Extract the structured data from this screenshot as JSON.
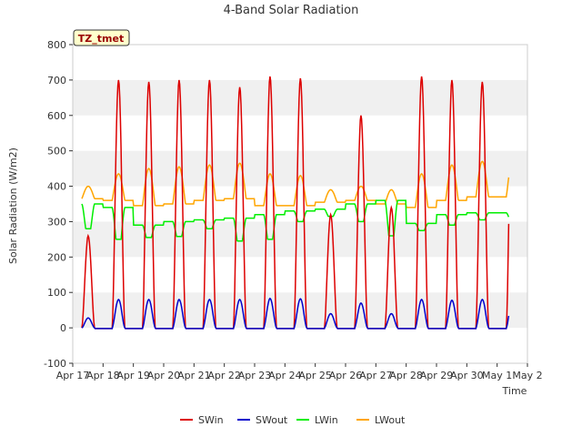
{
  "chart_data": {
    "type": "line",
    "title": "4-Band Solar Radiation",
    "xlabel": "Time",
    "ylabel": "Solar Radiation (W/m2)",
    "ylim": [
      -100,
      800
    ],
    "xlim_days": [
      17,
      32
    ],
    "yticks": [
      -100,
      0,
      100,
      200,
      300,
      400,
      500,
      600,
      700,
      800
    ],
    "xticks": [
      {
        "day": 17,
        "label": "Apr 17"
      },
      {
        "day": 18,
        "label": "Apr 18"
      },
      {
        "day": 19,
        "label": "Apr 19"
      },
      {
        "day": 20,
        "label": "Apr 20"
      },
      {
        "day": 21,
        "label": "Apr 21"
      },
      {
        "day": 22,
        "label": "Apr 22"
      },
      {
        "day": 23,
        "label": "Apr 23"
      },
      {
        "day": 24,
        "label": "Apr 24"
      },
      {
        "day": 25,
        "label": "Apr 25"
      },
      {
        "day": 26,
        "label": "Apr 26"
      },
      {
        "day": 27,
        "label": "Apr 27"
      },
      {
        "day": 28,
        "label": "Apr 28"
      },
      {
        "day": 29,
        "label": "Apr 29"
      },
      {
        "day": 30,
        "label": "Apr 30"
      },
      {
        "day": 31,
        "label": "May 1"
      },
      {
        "day": 32,
        "label": "May 2"
      }
    ],
    "grid": "horizontal bands",
    "annotation": "TZ_tmet",
    "data_range_days": [
      17.3,
      31.4
    ],
    "legend_position": "bottom-center",
    "series": [
      {
        "name": "SWin",
        "color": "#dd0000",
        "daily": [
          {
            "day": 17,
            "peak": 260
          },
          {
            "day": 18,
            "peak": 700
          },
          {
            "day": 19,
            "peak": 695
          },
          {
            "day": 20,
            "peak": 700
          },
          {
            "day": 21,
            "peak": 700
          },
          {
            "day": 22,
            "peak": 680
          },
          {
            "day": 23,
            "peak": 710
          },
          {
            "day": 24,
            "peak": 705
          },
          {
            "day": 25,
            "peak": 320
          },
          {
            "day": 26,
            "peak": 600
          },
          {
            "day": 27,
            "peak": 340
          },
          {
            "day": 28,
            "peak": 710
          },
          {
            "day": 29,
            "peak": 700
          },
          {
            "day": 30,
            "peak": 695
          }
        ]
      },
      {
        "name": "SWout",
        "color": "#0000cc",
        "daily": [
          {
            "day": 17,
            "peak": 28
          },
          {
            "day": 18,
            "peak": 80
          },
          {
            "day": 19,
            "peak": 80
          },
          {
            "day": 20,
            "peak": 80
          },
          {
            "day": 21,
            "peak": 80
          },
          {
            "day": 22,
            "peak": 80
          },
          {
            "day": 23,
            "peak": 83
          },
          {
            "day": 24,
            "peak": 82
          },
          {
            "day": 25,
            "peak": 40
          },
          {
            "day": 26,
            "peak": 70
          },
          {
            "day": 27,
            "peak": 40
          },
          {
            "day": 28,
            "peak": 80
          },
          {
            "day": 29,
            "peak": 78
          },
          {
            "day": 30,
            "peak": 80
          }
        ]
      },
      {
        "name": "LWin",
        "color": "#00ee00",
        "daily": [
          {
            "day": 17,
            "night": 350,
            "day_val": 280
          },
          {
            "day": 18,
            "night": 340,
            "day_val": 250
          },
          {
            "day": 19,
            "night": 290,
            "day_val": 255
          },
          {
            "day": 20,
            "night": 300,
            "day_val": 258
          },
          {
            "day": 21,
            "night": 305,
            "day_val": 280
          },
          {
            "day": 22,
            "night": 310,
            "day_val": 245
          },
          {
            "day": 23,
            "night": 320,
            "day_val": 250
          },
          {
            "day": 24,
            "night": 330,
            "day_val": 300
          },
          {
            "day": 25,
            "night": 335,
            "day_val": 315
          },
          {
            "day": 26,
            "night": 350,
            "day_val": 300
          },
          {
            "day": 27,
            "night": 360,
            "day_val": 260
          },
          {
            "day": 28,
            "night": 295,
            "day_val": 275
          },
          {
            "day": 29,
            "night": 320,
            "day_val": 290
          },
          {
            "day": 30,
            "night": 325,
            "day_val": 305
          }
        ]
      },
      {
        "name": "LWout",
        "color": "#ffa500",
        "daily": [
          {
            "day": 17,
            "night": 365,
            "peak": 400
          },
          {
            "day": 18,
            "night": 360,
            "peak": 435
          },
          {
            "day": 19,
            "night": 345,
            "peak": 450
          },
          {
            "day": 20,
            "night": 350,
            "peak": 455
          },
          {
            "day": 21,
            "night": 360,
            "peak": 460
          },
          {
            "day": 22,
            "night": 365,
            "peak": 465
          },
          {
            "day": 23,
            "night": 345,
            "peak": 435
          },
          {
            "day": 24,
            "night": 345,
            "peak": 430
          },
          {
            "day": 25,
            "night": 355,
            "peak": 390
          },
          {
            "day": 26,
            "night": 360,
            "peak": 400
          },
          {
            "day": 27,
            "night": 350,
            "peak": 390
          },
          {
            "day": 28,
            "night": 340,
            "peak": 435
          },
          {
            "day": 29,
            "night": 360,
            "peak": 460
          },
          {
            "day": 30,
            "night": 370,
            "peak": 470
          }
        ]
      }
    ]
  }
}
